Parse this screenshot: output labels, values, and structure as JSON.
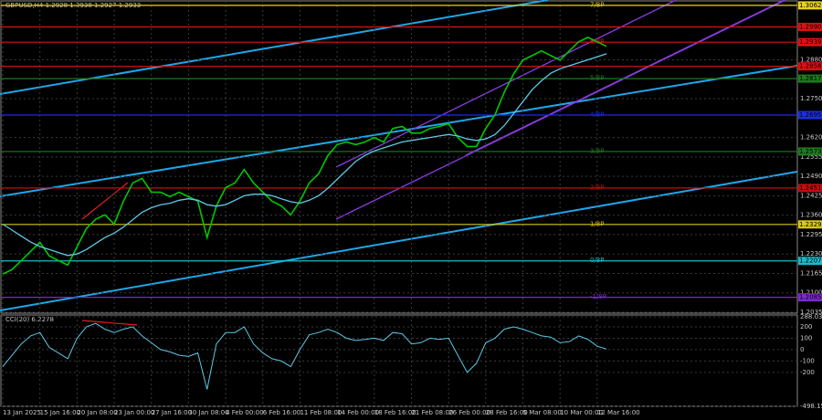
{
  "chart_data": {
    "type": "line",
    "title": "GBPUSD,H4 1.2928 1.2938 1.2927 1.2933",
    "indicator_title": "CCI(20) 6.2278",
    "categories": [
      "13 Jan 2025",
      null,
      null,
      null,
      "15 Jan 16:00",
      null,
      null,
      null,
      "20 Jan 08:00",
      null,
      null,
      null,
      "23 Jan 00:00",
      null,
      null,
      null,
      "27 Jan 16:00",
      null,
      null,
      null,
      "30 Jan 08:00",
      null,
      null,
      null,
      "4 Feb 00:00",
      null,
      null,
      null,
      "6 Feb 16:00",
      null,
      null,
      null,
      "11 Feb 08:00",
      null,
      null,
      null,
      "14 Feb 00:00",
      null,
      null,
      null,
      "18 Feb 16:00",
      null,
      null,
      null,
      "21 Feb 08:00",
      null,
      null,
      null,
      "26 Feb 00:00",
      null,
      null,
      null,
      "28 Feb 16:00",
      null,
      null,
      null,
      "5 Mar 08:00",
      null,
      null,
      null,
      "10 Mar 00:00",
      null,
      null,
      null,
      "12 Mar 16:00",
      null
    ],
    "series": [
      {
        "color": "#00c800",
        "values": [
          1.2163,
          1.2178,
          1.2208,
          1.2239,
          1.2269,
          1.2224,
          1.2208,
          1.2193,
          1.2254,
          1.2315,
          1.2346,
          1.2361,
          1.233,
          1.2407,
          1.2468,
          1.2483,
          1.2437,
          1.2437,
          1.2422,
          1.2437,
          1.2422,
          1.2407,
          1.2285,
          1.2391,
          1.2452,
          1.2468,
          1.2513,
          1.2468,
          1.2437,
          1.2407,
          1.2391,
          1.2361,
          1.2407,
          1.2468,
          1.2498,
          1.2559,
          1.2596,
          1.2605,
          1.2596,
          1.2605,
          1.262,
          1.2605,
          1.265,
          1.2657,
          1.2635,
          1.2635,
          1.265,
          1.2657,
          1.2666,
          1.262,
          1.259,
          1.259,
          1.265,
          1.2696,
          1.2772,
          1.2833,
          1.2879,
          1.2894,
          1.291,
          1.2894,
          1.2879,
          1.291,
          1.294,
          1.2955,
          1.294,
          1.2925
        ]
      },
      {
        "color": "#5ec8e6",
        "values": [
          1.233,
          1.231,
          1.229,
          1.227,
          1.2255,
          1.2245,
          1.2235,
          1.2225,
          1.223,
          1.2245,
          1.2265,
          1.2285,
          1.23,
          1.232,
          1.2345,
          1.237,
          1.2385,
          1.2395,
          1.24,
          1.241,
          1.2415,
          1.241,
          1.2395,
          1.239,
          1.2395,
          1.241,
          1.2425,
          1.243,
          1.243,
          1.2425,
          1.2415,
          1.2405,
          1.24,
          1.241,
          1.2425,
          1.245,
          1.248,
          1.251,
          1.254,
          1.256,
          1.2575,
          1.2585,
          1.2595,
          1.2605,
          1.261,
          1.2615,
          1.262,
          1.2625,
          1.263,
          1.2625,
          1.2615,
          1.261,
          1.2615,
          1.263,
          1.266,
          1.27,
          1.274,
          1.278,
          1.281,
          1.2835,
          1.285,
          1.286,
          1.287,
          1.288,
          1.289,
          1.29
        ]
      }
    ],
    "ylim": [
      1.2032,
      1.3077
    ],
    "yticks": [
      {
        "value": 1.2035,
        "label": "1.2035"
      },
      {
        "value": 1.21,
        "label": "1.2100"
      },
      {
        "value": 1.2165,
        "label": "1.2165"
      },
      {
        "value": 1.223,
        "label": "1.2230"
      },
      {
        "value": 1.2295,
        "label": "1.2295"
      },
      {
        "value": 1.236,
        "label": "1.2360"
      },
      {
        "value": 1.2425,
        "label": "1.2425"
      },
      {
        "value": 1.249,
        "label": "1.2490"
      },
      {
        "value": 1.2555,
        "label": "1.2555"
      },
      {
        "value": 1.262,
        "label": "1.2620"
      },
      {
        "value": 1.275,
        "label": "1.2750"
      },
      {
        "value": 1.288,
        "label": "1.2880"
      }
    ],
    "levels": [
      {
        "value": 1.3062,
        "label": "1.3062",
        "name": "7/8P",
        "color": "#e8d21a"
      },
      {
        "value": 1.299,
        "label": "1.2990",
        "color": "#e01010"
      },
      {
        "value": 1.2939,
        "label": "1.2939",
        "name": "6/8P",
        "color": "#e01010"
      },
      {
        "value": 1.2858,
        "label": "1.2858",
        "color": "#e01010"
      },
      {
        "value": 1.2817,
        "label": "1.2817",
        "name": "5/8P",
        "color": "#1f7a1f"
      },
      {
        "value": 1.2695,
        "label": "1.2695",
        "name": "4/8P",
        "color": "#1a2ee0"
      },
      {
        "value": 1.2573,
        "label": "1.2573",
        "name": "3/8P",
        "color": "#1f7a1f"
      },
      {
        "value": 1.2451,
        "label": "1.2451",
        "name": "2/8P",
        "color": "#c01010"
      },
      {
        "value": 1.2329,
        "label": "1.2329",
        "name": "1/8P",
        "color": "#d8c818"
      },
      {
        "value": 1.2207,
        "label": "1.2207",
        "name": "0/8P",
        "color": "#20b8c8"
      },
      {
        "value": 1.2085,
        "label": "1.2085",
        "name": "-1/8P",
        "color": "#7a2ad0"
      }
    ],
    "indicator": {
      "color": "#5ec8e6",
      "values": [
        -150,
        -50,
        50,
        120,
        150,
        20,
        -30,
        -80,
        100,
        200,
        230,
        180,
        150,
        180,
        200,
        120,
        60,
        0,
        -20,
        -50,
        -60,
        -30,
        -350,
        50,
        150,
        150,
        200,
        50,
        -30,
        -80,
        -100,
        -150,
        0,
        130,
        150,
        180,
        150,
        100,
        80,
        90,
        100,
        80,
        150,
        140,
        50,
        60,
        100,
        90,
        100,
        -50,
        -200,
        -120,
        60,
        100,
        180,
        200,
        180,
        150,
        120,
        110,
        60,
        70,
        120,
        90,
        30,
        6
      ],
      "ylim": [
        -498.1538,
        288.0311
      ],
      "yticks": [
        288.0311,
        200,
        100,
        0,
        -100,
        -200,
        -498.1538
      ]
    }
  }
}
